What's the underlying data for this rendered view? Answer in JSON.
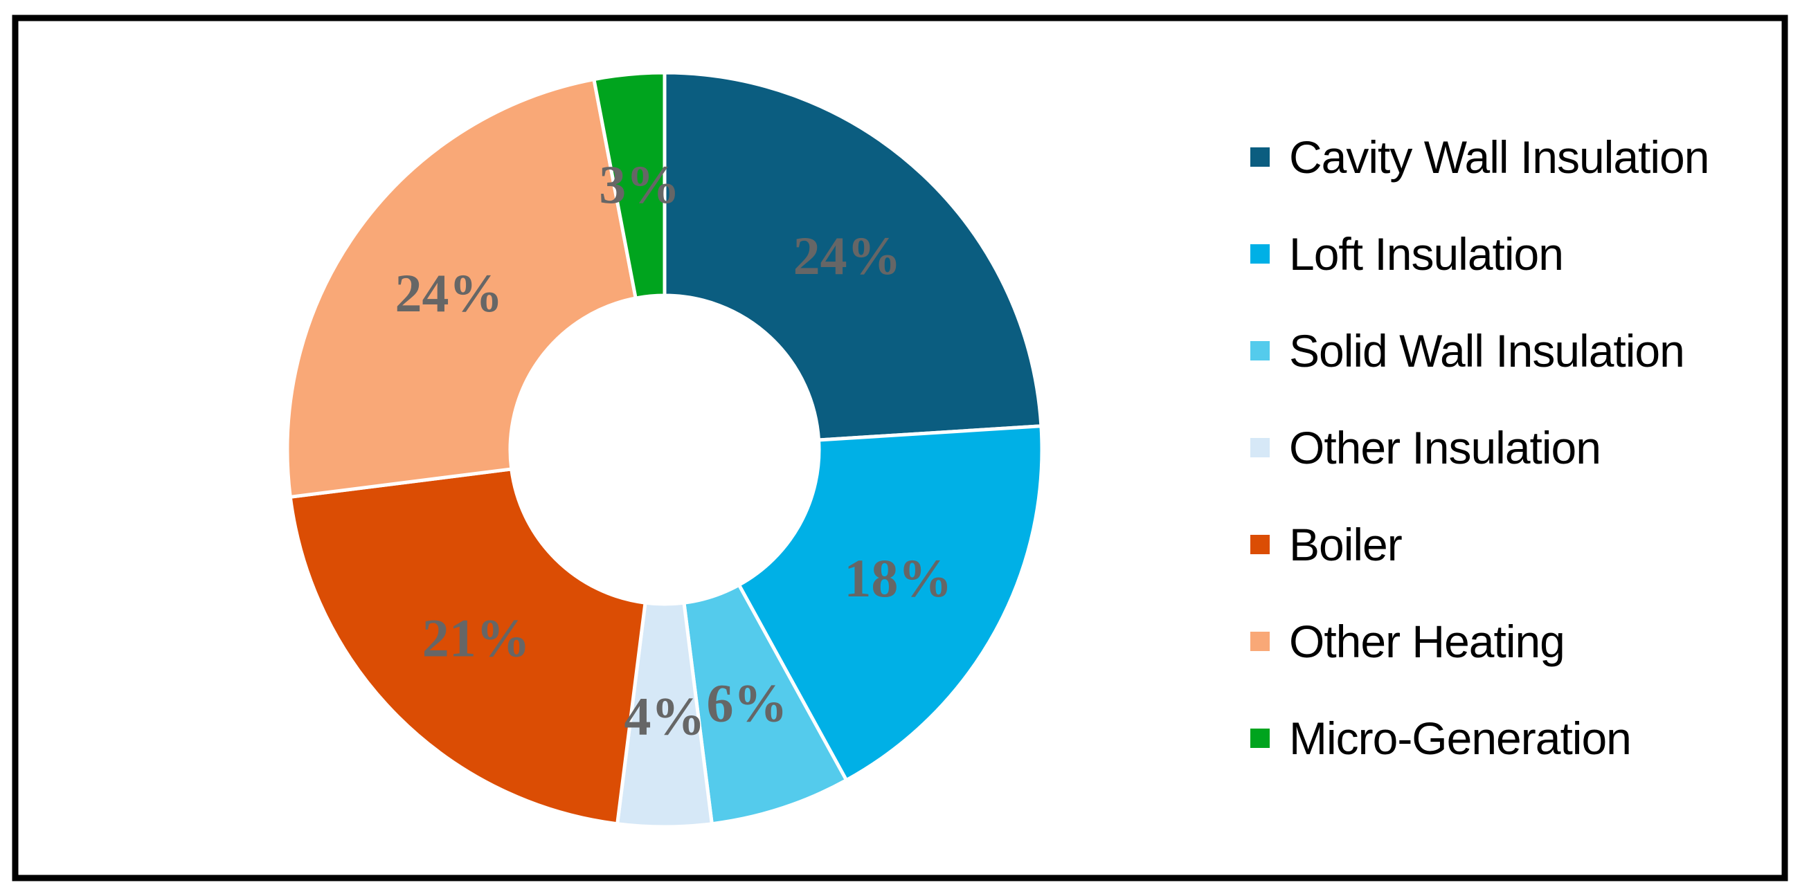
{
  "frame": {
    "border_color": "#000000",
    "background_color": "#ffffff"
  },
  "chart_data": {
    "type": "pie",
    "subtype": "donut",
    "title": "",
    "categories": [
      "Cavity Wall Insulation",
      "Loft Insulation",
      "Solid Wall Insulation",
      "Other Insulation",
      "Boiler",
      "Other Heating",
      "Micro-Generation"
    ],
    "values": [
      24,
      18,
      6,
      4,
      21,
      24,
      3
    ],
    "data_labels": [
      "24%",
      "18%",
      "6%",
      "4%",
      "21%",
      "24%",
      "3%"
    ],
    "colors": [
      "#0B5D80",
      "#00B0E6",
      "#54CBEC",
      "#D6E8F7",
      "#DB4D04",
      "#F9A877",
      "#00A41E"
    ],
    "data_label_color": "#666666",
    "start_angle_deg": 0,
    "direction": "clockwise",
    "hole_ratio": 0.41,
    "legend_position": "right",
    "grid": false
  }
}
